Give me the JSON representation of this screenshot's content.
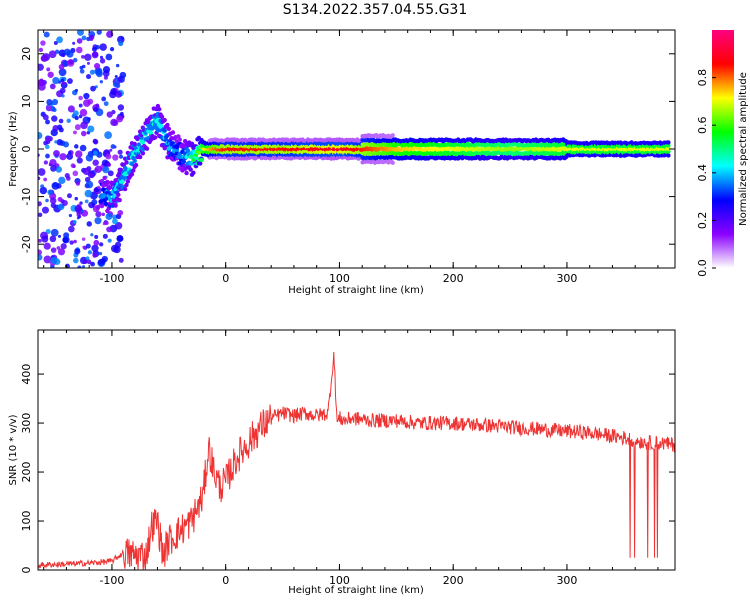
{
  "title": "S134.2022.357.04.55.G31",
  "chart_data": [
    {
      "type": "heatmap",
      "title": "",
      "xlabel": "Height of straight line (km)",
      "ylabel": "Frequency (Hz)",
      "xlim": [
        -165,
        395
      ],
      "ylim": [
        -25,
        25
      ],
      "xticks": [
        -100,
        0,
        100,
        200,
        300
      ],
      "yticks": [
        -20,
        -10,
        0,
        10,
        20
      ],
      "colorbar": {
        "label": "Normalized spectral amplitude",
        "range": [
          0,
          1
        ],
        "ticks": [
          "0.0",
          "0.2",
          "0.4",
          "0.6",
          "0.8"
        ],
        "colors": [
          "#ffffff",
          "#8a00ff",
          "#0000ff",
          "#00ffff",
          "#00ff00",
          "#ffff00",
          "#ff0000",
          "#ff0080"
        ]
      },
      "ridge_x": [
        -110,
        -100,
        -90,
        -80,
        -70,
        -60,
        -50,
        -40,
        -30,
        -20,
        -10,
        0,
        50,
        100,
        150,
        200,
        250,
        300,
        350,
        390
      ],
      "ridge_y": [
        -9,
        -10,
        -6,
        -1,
        3,
        6,
        1,
        -1,
        -2,
        0,
        0,
        0,
        0,
        0,
        0,
        0,
        0,
        0,
        0,
        0
      ],
      "ridge_amplitude": [
        0.35,
        0.4,
        0.45,
        0.45,
        0.45,
        0.45,
        0.4,
        0.35,
        0.5,
        0.7,
        0.8,
        0.85,
        0.85,
        0.9,
        0.75,
        0.7,
        0.65,
        0.7,
        0.7,
        0.7
      ]
    },
    {
      "type": "line",
      "title": "",
      "xlabel": "Height of straight line (km)",
      "ylabel": "SNR (10 * v/v)",
      "xlim": [
        -165,
        395
      ],
      "ylim": [
        0,
        490
      ],
      "xticks": [
        -100,
        0,
        100,
        200,
        300
      ],
      "yticks": [
        0,
        100,
        200,
        300,
        400
      ],
      "color": "#ee3333",
      "x": [
        -165,
        -140,
        -120,
        -100,
        -90,
        -80,
        -70,
        -65,
        -60,
        -55,
        -50,
        -40,
        -30,
        -20,
        -15,
        -10,
        -5,
        0,
        10,
        20,
        30,
        40,
        50,
        60,
        70,
        80,
        90,
        95,
        98,
        100,
        105,
        110,
        130,
        150,
        170,
        200,
        230,
        260,
        290,
        320,
        350,
        360,
        370,
        380,
        395
      ],
      "y": [
        10,
        12,
        14,
        18,
        35,
        30,
        30,
        90,
        100,
        30,
        60,
        80,
        100,
        150,
        250,
        200,
        170,
        180,
        230,
        260,
        290,
        310,
        320,
        315,
        320,
        315,
        320,
        440,
        300,
        310,
        305,
        310,
        305,
        305,
        300,
        300,
        295,
        290,
        285,
        280,
        270,
        265,
        260,
        260,
        255
      ]
    }
  ]
}
